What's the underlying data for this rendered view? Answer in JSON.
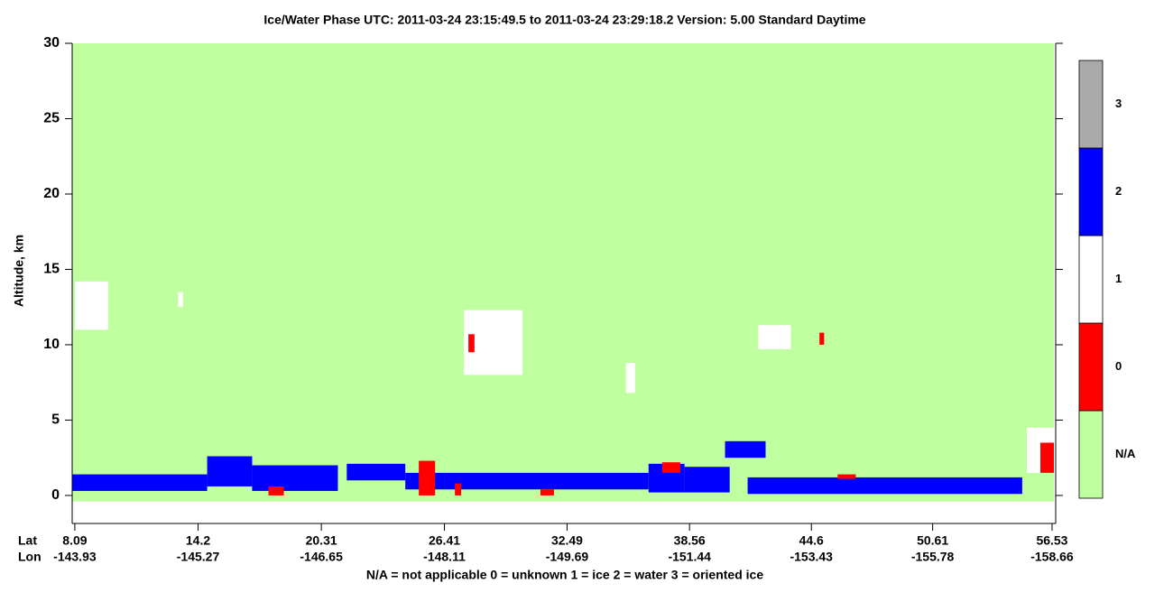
{
  "chart_data": {
    "type": "phase-curtain",
    "title": "Ice/Water Phase    UTC:  2011-03-24   23:15:49.5  to  2011-03-24   23:29:18.2    Version: 5.00  Standard Daytime",
    "ylabel": "Altitude, km",
    "ylim": [
      -1.86,
      30
    ],
    "yticks": [
      0,
      5,
      10,
      15,
      20,
      25,
      30
    ],
    "xlim": [
      7.96,
      56.71
    ],
    "xtick_row_labels": [
      "Lat",
      "Lon"
    ],
    "xticks": [
      8.09,
      14.2,
      20.31,
      26.41,
      32.49,
      38.56,
      44.6,
      50.61,
      56.53
    ],
    "lon": [
      -143.93,
      -145.27,
      -146.65,
      -148.11,
      -149.69,
      -151.44,
      -153.43,
      -155.78,
      -158.66
    ],
    "classes": [
      {
        "label": "N/A",
        "color": "#c0ffa0"
      },
      {
        "label": "0",
        "color": "#ff0000"
      },
      {
        "label": "1",
        "color": "#ffffff"
      },
      {
        "label": "2",
        "color": "#0000ff"
      },
      {
        "label": "3",
        "color": "#aaaaaa"
      }
    ],
    "footnote": "N/A = not applicable     0 = unknown     1 = ice     2 = water     3 = oriented ice",
    "layers": [
      {
        "phase": "N/A",
        "lat": [
          7.96,
          56.62
        ],
        "alt": [
          -0.4,
          30
        ]
      },
      {
        "phase": "2",
        "lat": [
          7.96,
          14.65
        ],
        "alt": [
          0.3,
          1.4
        ]
      },
      {
        "phase": "2",
        "lat": [
          14.65,
          16.88
        ],
        "alt": [
          0.6,
          2.6
        ]
      },
      {
        "phase": "2",
        "lat": [
          16.88,
          21.13
        ],
        "alt": [
          0.3,
          2.0
        ]
      },
      {
        "phase": "2",
        "lat": [
          21.57,
          24.47
        ],
        "alt": [
          1.0,
          2.1
        ]
      },
      {
        "phase": "2",
        "lat": [
          24.47,
          36.53
        ],
        "alt": [
          0.4,
          1.5
        ]
      },
      {
        "phase": "2",
        "lat": [
          36.53,
          38.31
        ],
        "alt": [
          0.2,
          2.1
        ]
      },
      {
        "phase": "2",
        "lat": [
          38.31,
          40.55
        ],
        "alt": [
          0.2,
          1.9
        ]
      },
      {
        "phase": "2",
        "lat": [
          41.44,
          55.05
        ],
        "alt": [
          0.1,
          1.2
        ]
      },
      {
        "phase": "2",
        "lat": [
          40.32,
          42.33
        ],
        "alt": [
          2.5,
          3.6
        ]
      },
      {
        "phase": "1",
        "lat": [
          8.09,
          9.74
        ],
        "alt": [
          11,
          14.2
        ]
      },
      {
        "phase": "1",
        "lat": [
          13.22,
          13.45
        ],
        "alt": [
          12.5,
          13.5
        ]
      },
      {
        "phase": "1",
        "lat": [
          27.38,
          30.28
        ],
        "alt": [
          8,
          12.3
        ]
      },
      {
        "phase": "1",
        "lat": [
          35.41,
          35.86
        ],
        "alt": [
          6.8,
          8.8
        ]
      },
      {
        "phase": "1",
        "lat": [
          41.97,
          43.58
        ],
        "alt": [
          9.7,
          11.3
        ]
      },
      {
        "phase": "1",
        "lat": [
          55.28,
          56.62
        ],
        "alt": [
          1.5,
          4.5
        ]
      },
      {
        "phase": "0",
        "lat": [
          25.14,
          25.95
        ],
        "alt": [
          0,
          2.3
        ]
      },
      {
        "phase": "0",
        "lat": [
          27.6,
          27.9
        ],
        "alt": [
          9.5,
          10.7
        ]
      },
      {
        "phase": "0",
        "lat": [
          37.2,
          38.1
        ],
        "alt": [
          1.5,
          2.2
        ]
      },
      {
        "phase": "0",
        "lat": [
          45.9,
          46.8
        ],
        "alt": [
          1.1,
          1.4
        ]
      },
      {
        "phase": "0",
        "lat": [
          17.69,
          18.45
        ],
        "alt": [
          0,
          0.6
        ]
      },
      {
        "phase": "0",
        "lat": [
          26.93,
          27.24
        ],
        "alt": [
          0,
          0.8
        ]
      },
      {
        "phase": "0",
        "lat": [
          31.17,
          31.84
        ],
        "alt": [
          0,
          0.4
        ]
      },
      {
        "phase": "0",
        "lat": [
          55.95,
          56.62
        ],
        "alt": [
          1.5,
          3.5
        ]
      },
      {
        "phase": "0",
        "lat": [
          45.0,
          45.23
        ],
        "alt": [
          10,
          10.8
        ]
      }
    ]
  }
}
